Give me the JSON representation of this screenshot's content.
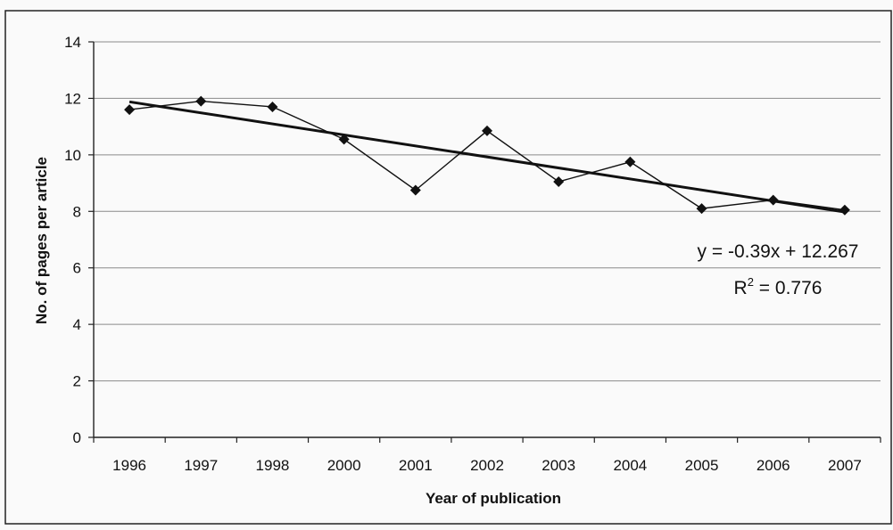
{
  "chart_data": {
    "type": "line",
    "title": "",
    "xlabel": "Year of publication",
    "ylabel": "No. of pages per article",
    "categories": [
      "1996",
      "1997",
      "1998",
      "2000",
      "2001",
      "2002",
      "2003",
      "2004",
      "2005",
      "2006",
      "2007"
    ],
    "series": [
      {
        "values": [
          11.6,
          11.9,
          11.7,
          10.55,
          8.75,
          10.85,
          9.05,
          9.75,
          8.1,
          8.4,
          8.05
        ],
        "color": "#111111",
        "marker": "diamond"
      }
    ],
    "trendline": {
      "slope": -0.39,
      "intercept": 12.267,
      "equation_text": "y = -0.39x + 12.267",
      "r2_prefix": "R",
      "r2_superscript": "2",
      "r2_suffix": " = 0.776",
      "color": "#111111"
    },
    "ylim": [
      0,
      14
    ],
    "yticks": [
      "0",
      "2",
      "4",
      "6",
      "8",
      "10",
      "12",
      "14"
    ],
    "grid": true,
    "legend": "none"
  }
}
